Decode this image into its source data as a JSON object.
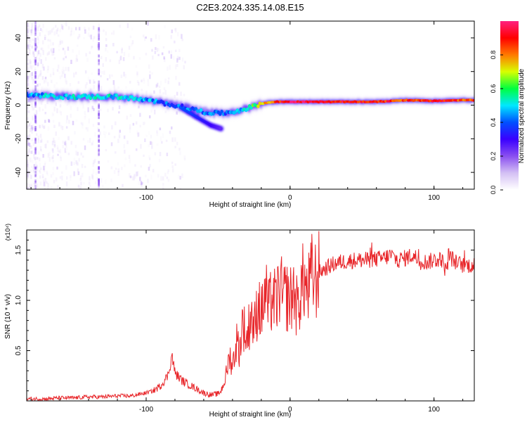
{
  "title": "C2E3.2024.335.14.08.E15",
  "colors": {
    "snr_line": "#e8262a",
    "frame": "#000000",
    "colorscale": [
      "#ffffff",
      "#d4c0f4",
      "#8a4ff0",
      "#3a00ff",
      "#0050ff",
      "#00e8ff",
      "#00ff40",
      "#d8ff00",
      "#ff7a00",
      "#ff0000",
      "#ff2080"
    ]
  },
  "chart_data": [
    {
      "type": "heatmap",
      "title": "",
      "xlabel": "Height of straight line (km)",
      "ylabel": "Frequency (Hz)",
      "xlim": [
        -183,
        128
      ],
      "ylim": [
        -50,
        50
      ],
      "xticks": [
        -100,
        0,
        100
      ],
      "yticks": [
        40,
        20,
        0,
        -20,
        -40
      ],
      "colorbar": {
        "label": "Normalized spectral amplitude",
        "range": [
          0,
          1
        ],
        "ticks": [
          "0.0",
          "0.2",
          "0.4",
          "0.6",
          "0.8"
        ],
        "tick_values": [
          0.0,
          0.2,
          0.4,
          0.6,
          0.8
        ]
      },
      "ridge": {
        "description_points": [
          {
            "x": -180,
            "freq": 6,
            "amp": 0.45
          },
          {
            "x": -160,
            "freq": 5,
            "amp": 0.5
          },
          {
            "x": -140,
            "freq": 5,
            "amp": 0.5
          },
          {
            "x": -120,
            "freq": 5,
            "amp": 0.5
          },
          {
            "x": -100,
            "freq": 3,
            "amp": 0.45
          },
          {
            "x": -80,
            "freq": 0,
            "amp": 0.4
          },
          {
            "x": -70,
            "freq": -2,
            "amp": 0.4
          },
          {
            "x": -60,
            "freq": -4,
            "amp": 0.45
          },
          {
            "x": -50,
            "freq": -5,
            "amp": 0.4
          },
          {
            "x": -40,
            "freq": -4,
            "amp": 0.4
          },
          {
            "x": -30,
            "freq": -2,
            "amp": 0.5
          },
          {
            "x": -20,
            "freq": 1,
            "amp": 0.7
          },
          {
            "x": -10,
            "freq": 2,
            "amp": 0.85
          },
          {
            "x": 0,
            "freq": 2,
            "amp": 0.95
          },
          {
            "x": 20,
            "freq": 2,
            "amp": 0.95
          },
          {
            "x": 40,
            "freq": 2,
            "amp": 0.9
          },
          {
            "x": 60,
            "freq": 2,
            "amp": 0.9
          },
          {
            "x": 80,
            "freq": 3,
            "amp": 0.85
          },
          {
            "x": 100,
            "freq": 2.5,
            "amp": 0.9
          },
          {
            "x": 120,
            "freq": 3,
            "amp": 0.85
          }
        ],
        "branch": [
          {
            "x": -75,
            "freq": -2,
            "amp": 0.4
          },
          {
            "x": -65,
            "freq": -7,
            "amp": 0.35
          },
          {
            "x": -55,
            "freq": -12,
            "amp": 0.3
          },
          {
            "x": -48,
            "freq": -14,
            "amp": 0.25
          }
        ]
      }
    },
    {
      "type": "line",
      "title": "",
      "xlabel": "Height of straight line (km)",
      "ylabel": "SNR (10 * v/v)",
      "yscale_note": "(x10⁴)",
      "xlim": [
        -183,
        128
      ],
      "ylim": [
        0,
        1.7
      ],
      "xticks": [
        -100,
        0,
        100
      ],
      "yticks": [
        0.5,
        1.0,
        1.5
      ],
      "ytick_labels": [
        "0.5",
        "1.0",
        "1.5"
      ],
      "series": [
        {
          "name": "SNR",
          "x": [
            -183,
            -170,
            -160,
            -150,
            -140,
            -130,
            -120,
            -110,
            -100,
            -95,
            -90,
            -85,
            -82,
            -80,
            -75,
            -70,
            -65,
            -60,
            -55,
            -50,
            -48,
            -45,
            -42,
            -40,
            -37,
            -35,
            -33,
            -30,
            -27,
            -25,
            -22,
            -20,
            -17,
            -15,
            -12,
            -10,
            -7,
            -5,
            -3,
            0,
            3,
            5,
            8,
            10,
            12,
            15,
            18,
            20,
            25,
            30,
            35,
            40,
            45,
            50,
            55,
            60,
            65,
            70,
            75,
            80,
            85,
            90,
            95,
            100,
            105,
            108,
            110,
            115,
            120,
            128
          ],
          "values": [
            0.02,
            0.02,
            0.03,
            0.03,
            0.04,
            0.04,
            0.05,
            0.05,
            0.08,
            0.1,
            0.15,
            0.25,
            0.45,
            0.28,
            0.2,
            0.16,
            0.12,
            0.08,
            0.06,
            0.07,
            0.1,
            0.22,
            0.45,
            0.35,
            0.6,
            0.5,
            0.8,
            0.6,
            0.9,
            0.7,
            1.0,
            0.85,
            1.1,
            0.9,
            1.05,
            0.95,
            1.15,
            1.0,
            1.05,
            1.0,
            1.1,
            0.9,
            1.15,
            1.2,
            1.05,
            1.25,
            1.2,
            1.28,
            1.32,
            1.36,
            1.38,
            1.39,
            1.4,
            1.4,
            1.4,
            1.41,
            1.42,
            1.45,
            1.4,
            1.42,
            1.45,
            1.4,
            1.38,
            1.4,
            1.42,
            1.3,
            1.45,
            1.38,
            1.35,
            1.35
          ]
        }
      ]
    }
  ]
}
